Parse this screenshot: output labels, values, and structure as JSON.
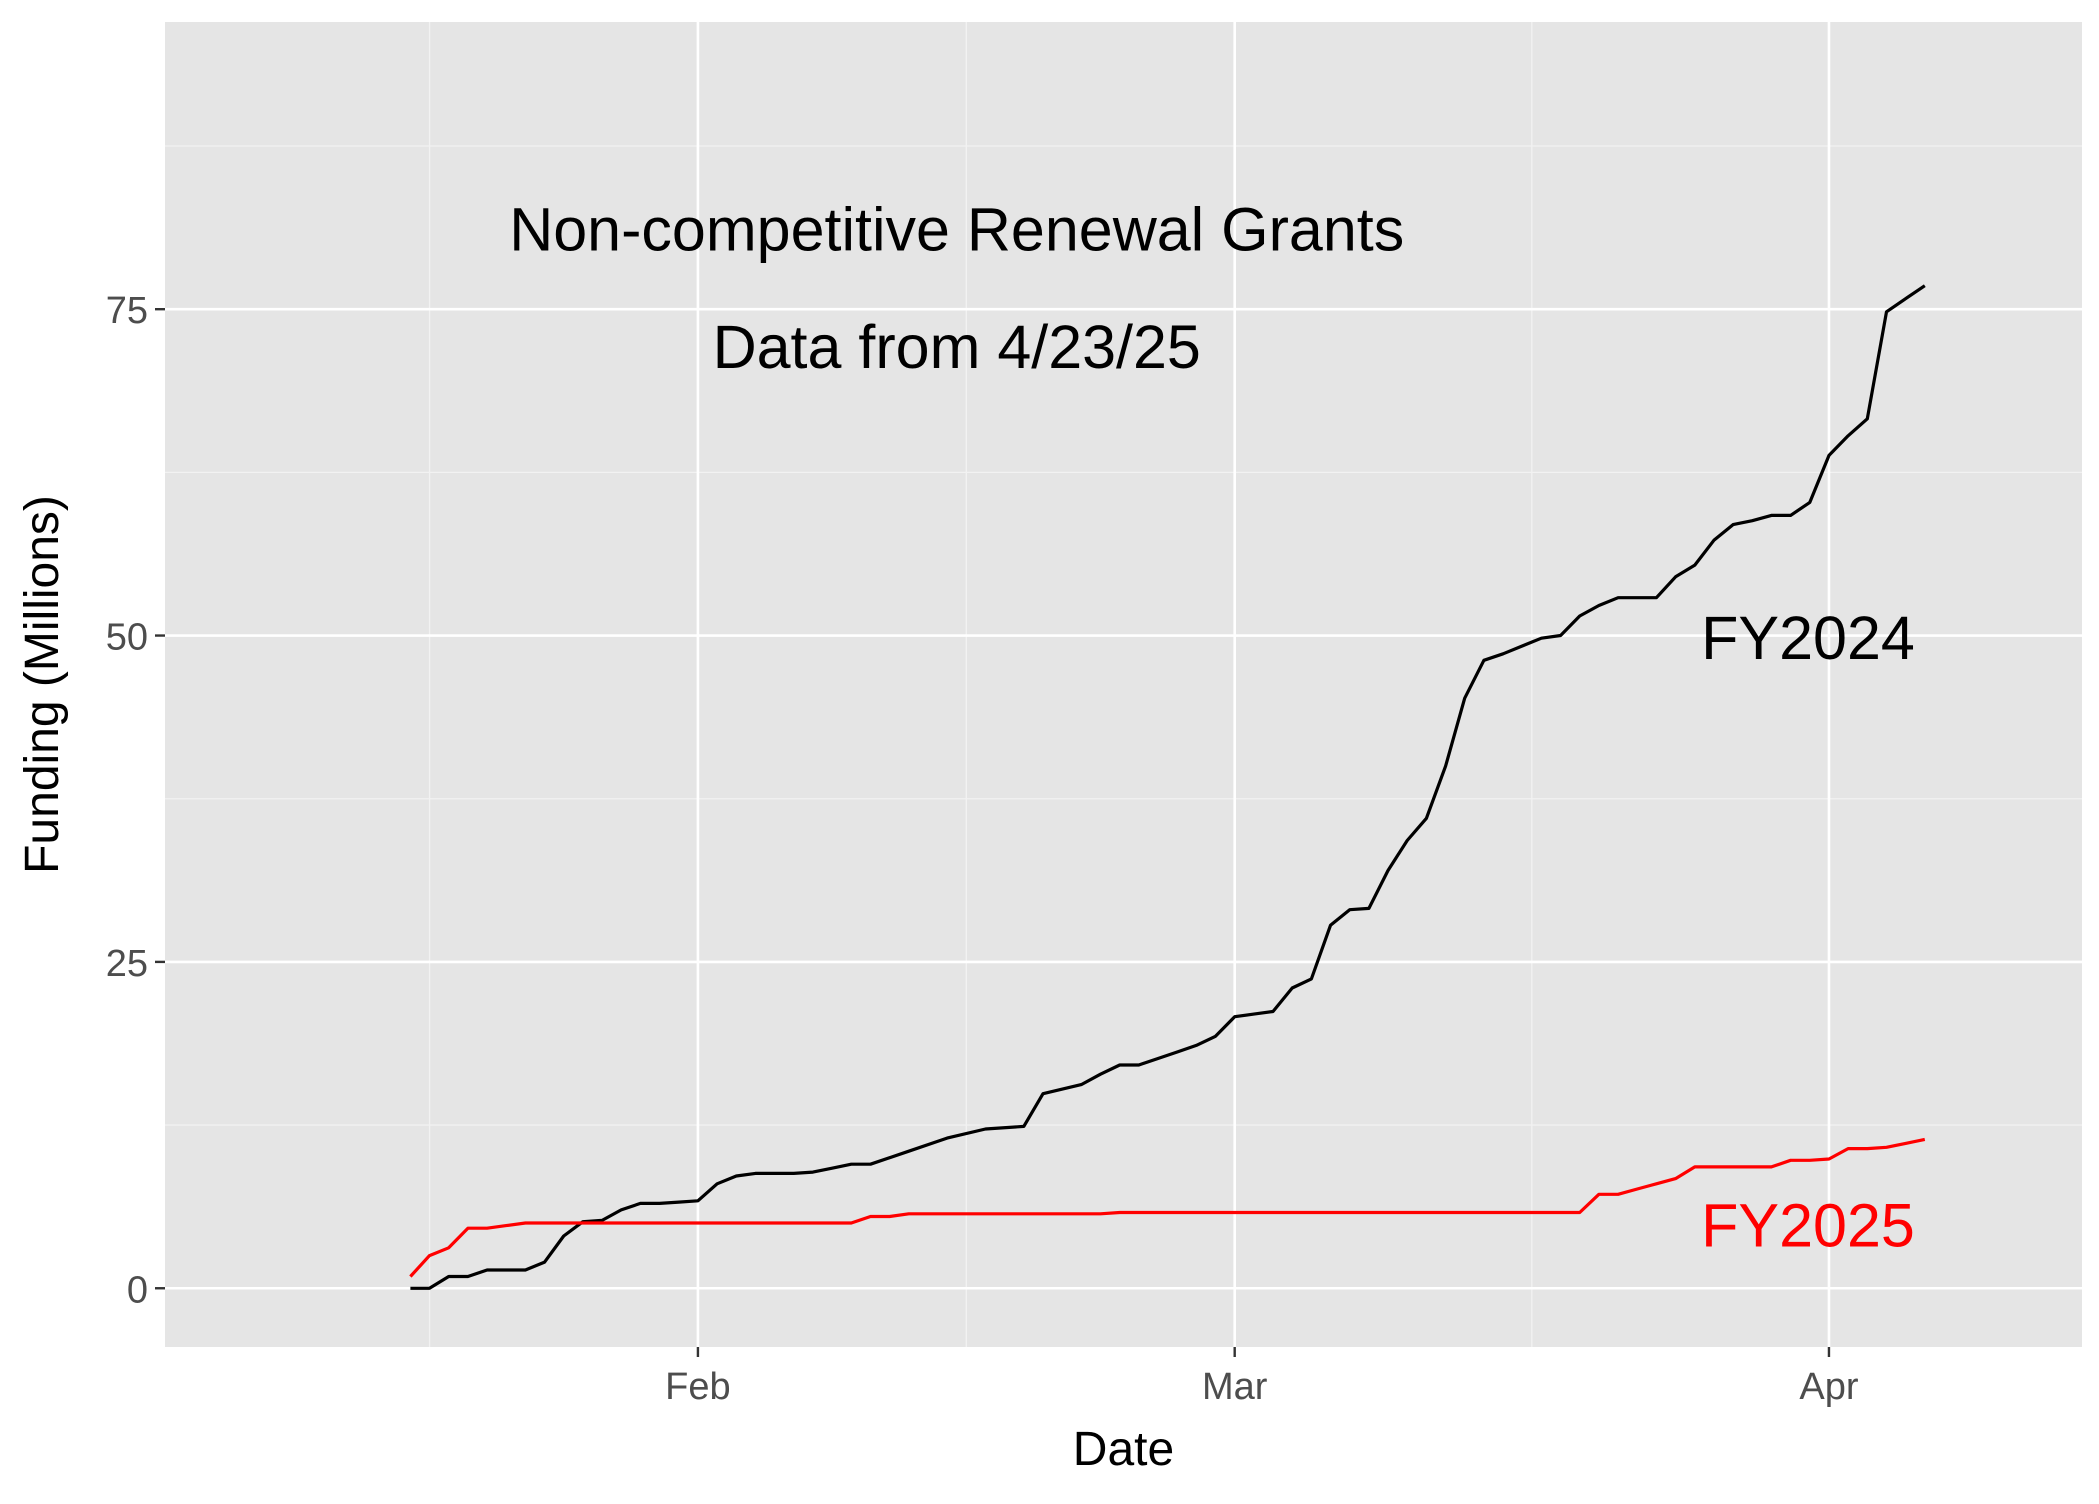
{
  "chart_data": {
    "type": "line",
    "title": "",
    "annotations": {
      "line1": "Non-competitive Renewal Grants",
      "line2": "Data from 4/23/25"
    },
    "xlabel": "Date",
    "ylabel": "Funding (Millions)",
    "x_ticks": [
      {
        "label": "Feb",
        "day": 15
      },
      {
        "label": "Mar",
        "day": 43
      },
      {
        "label": "Apr",
        "day": 74
      }
    ],
    "y_ticks": [
      0,
      25,
      50,
      75
    ],
    "xlim": [
      -12.8,
      87.2
    ],
    "ylim": [
      -4.5,
      97
    ],
    "grid": true,
    "legend": "none",
    "series": [
      {
        "name": "FY2024",
        "color": "#000000",
        "points": [
          [
            0,
            0
          ],
          [
            1,
            0
          ],
          [
            2,
            0.9
          ],
          [
            3,
            0.9
          ],
          [
            4,
            1.4
          ],
          [
            5,
            1.4
          ],
          [
            6,
            1.4
          ],
          [
            7,
            2
          ],
          [
            8,
            4
          ],
          [
            9,
            5.1
          ],
          [
            10,
            5.2
          ],
          [
            11,
            6
          ],
          [
            12,
            6.5
          ],
          [
            13,
            6.5
          ],
          [
            14,
            6.6
          ],
          [
            15,
            6.7
          ],
          [
            16,
            8
          ],
          [
            17,
            8.6
          ],
          [
            18,
            8.8
          ],
          [
            19,
            8.8
          ],
          [
            20,
            8.8
          ],
          [
            21,
            8.9
          ],
          [
            22,
            9.2
          ],
          [
            23,
            9.5
          ],
          [
            24,
            9.5
          ],
          [
            26,
            10.5
          ],
          [
            28,
            11.5
          ],
          [
            30,
            12.2
          ],
          [
            32,
            12.4
          ],
          [
            33,
            14.9
          ],
          [
            35,
            15.6
          ],
          [
            36,
            16.4
          ],
          [
            37,
            17.1
          ],
          [
            38,
            17.1
          ],
          [
            39,
            17.6
          ],
          [
            40,
            18.1
          ],
          [
            41,
            18.6
          ],
          [
            42,
            19.3
          ],
          [
            43,
            20.8
          ],
          [
            44,
            21
          ],
          [
            45,
            21.2
          ],
          [
            46,
            23
          ],
          [
            47,
            23.7
          ],
          [
            48,
            27.8
          ],
          [
            49,
            29
          ],
          [
            50,
            29.1
          ],
          [
            51,
            32
          ],
          [
            52,
            34.3
          ],
          [
            53,
            36
          ],
          [
            54,
            40
          ],
          [
            55,
            45.2
          ],
          [
            56,
            48.1
          ],
          [
            57,
            48.6
          ],
          [
            58,
            49.2
          ],
          [
            59,
            49.8
          ],
          [
            60,
            50
          ],
          [
            61,
            51.5
          ],
          [
            62,
            52.3
          ],
          [
            63,
            52.9
          ],
          [
            64,
            52.9
          ],
          [
            65,
            52.9
          ],
          [
            66,
            54.5
          ],
          [
            67,
            55.4
          ],
          [
            68,
            57.3
          ],
          [
            69,
            58.5
          ],
          [
            70,
            58.8
          ],
          [
            71,
            59.2
          ],
          [
            72,
            59.2
          ],
          [
            73,
            60.2
          ],
          [
            74,
            63.8
          ],
          [
            75,
            65.3
          ],
          [
            76,
            66.6
          ],
          [
            77,
            74.8
          ],
          [
            78,
            75.8
          ],
          [
            79,
            76.8
          ]
        ]
      },
      {
        "name": "FY2025",
        "color": "#ff0000",
        "points": [
          [
            0,
            0.9
          ],
          [
            1,
            2.5
          ],
          [
            2,
            3.1
          ],
          [
            3,
            4.6
          ],
          [
            4,
            4.6
          ],
          [
            5,
            4.8
          ],
          [
            6,
            5
          ],
          [
            7,
            5
          ],
          [
            8,
            5
          ],
          [
            12,
            5
          ],
          [
            18,
            5
          ],
          [
            23,
            5
          ],
          [
            24,
            5.5
          ],
          [
            25,
            5.5
          ],
          [
            26,
            5.7
          ],
          [
            33,
            5.7
          ],
          [
            36,
            5.7
          ],
          [
            37,
            5.8
          ],
          [
            50,
            5.8
          ],
          [
            61,
            5.8
          ],
          [
            62,
            7.2
          ],
          [
            63,
            7.2
          ],
          [
            64,
            7.6
          ],
          [
            65,
            8
          ],
          [
            66,
            8.4
          ],
          [
            67,
            9.3
          ],
          [
            68,
            9.3
          ],
          [
            70,
            9.3
          ],
          [
            71,
            9.3
          ],
          [
            72,
            9.8
          ],
          [
            73,
            9.8
          ],
          [
            74,
            9.9
          ],
          [
            75,
            10.7
          ],
          [
            76,
            10.7
          ],
          [
            77,
            10.8
          ],
          [
            78,
            11.1
          ],
          [
            79,
            11.4
          ]
        ]
      }
    ]
  }
}
